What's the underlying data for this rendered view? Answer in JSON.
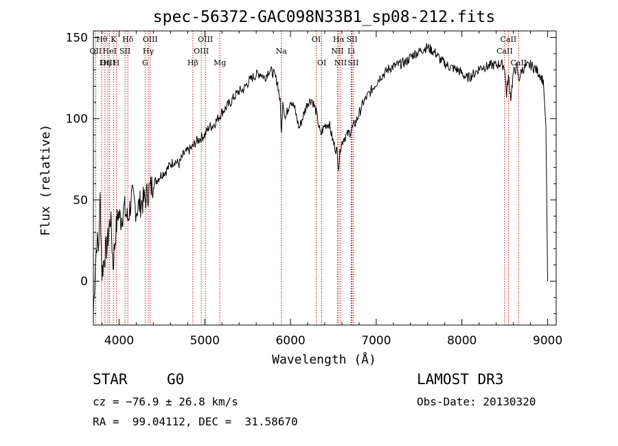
{
  "chart_data": {
    "type": "line",
    "title": "spec-56372-GAC098N33B1_sp08-212.fits",
    "xlabel": "Wavelength (Å)",
    "ylabel": "Flux (relative)",
    "xlim": [
      3700,
      9100
    ],
    "ylim": [
      -27,
      154
    ],
    "xticks": [
      4000,
      5000,
      6000,
      7000,
      8000,
      9000
    ],
    "yticks": [
      0,
      50,
      100,
      150
    ],
    "grid": false,
    "series": [
      {
        "name": "flux",
        "x": [
          3700,
          3720,
          3740,
          3760,
          3780,
          3800,
          3830,
          3860,
          3900,
          3930,
          3960,
          3990,
          4020,
          4060,
          4100,
          4150,
          4200,
          4250,
          4300,
          4350,
          4400,
          4450,
          4500,
          4550,
          4600,
          4650,
          4700,
          4750,
          4800,
          4850,
          4900,
          4950,
          5000,
          5050,
          5100,
          5150,
          5200,
          5250,
          5300,
          5350,
          5400,
          5450,
          5500,
          5550,
          5600,
          5650,
          5700,
          5750,
          5800,
          5850,
          5880,
          5895,
          5910,
          5940,
          5960,
          6000,
          6050,
          6100,
          6150,
          6200,
          6250,
          6300,
          6350,
          6400,
          6450,
          6500,
          6540,
          6563,
          6580,
          6620,
          6700,
          6780,
          6850,
          6900,
          6950,
          7000,
          7050,
          7100,
          7150,
          7200,
          7250,
          7300,
          7350,
          7400,
          7450,
          7500,
          7550,
          7600,
          7650,
          7700,
          7750,
          7800,
          7850,
          7900,
          7950,
          8000,
          8050,
          8100,
          8150,
          8200,
          8250,
          8300,
          8350,
          8400,
          8450,
          8498,
          8520,
          8542,
          8570,
          8600,
          8640,
          8662,
          8700,
          8750,
          8800,
          8850,
          8900,
          8950,
          8980,
          9000
        ],
        "values": [
          -20,
          8,
          25,
          20,
          52,
          5,
          15,
          22,
          40,
          10,
          30,
          42,
          38,
          45,
          38,
          52,
          44,
          48,
          50,
          56,
          60,
          63,
          66,
          68,
          72,
          74,
          72,
          78,
          80,
          82,
          86,
          88,
          90,
          95,
          96,
          100,
          104,
          107,
          110,
          114,
          117,
          118,
          122,
          125,
          127,
          128,
          125,
          130,
          128,
          122,
          110,
          90,
          112,
          100,
          104,
          112,
          106,
          94,
          102,
          110,
          112,
          104,
          90,
          96,
          97,
          85,
          80,
          70,
          82,
          88,
          92,
          100,
          110,
          114,
          118,
          122,
          126,
          128,
          131,
          132,
          133,
          134,
          135,
          138,
          140,
          141,
          143,
          144,
          142,
          140,
          136,
          134,
          132,
          131,
          130,
          128,
          125,
          126,
          128,
          131,
          132,
          132,
          133,
          133,
          134,
          132,
          115,
          126,
          113,
          128,
          132,
          124,
          130,
          132,
          133,
          131,
          128,
          123,
          95,
          0
        ]
      }
    ],
    "line_labels": [
      {
        "label": "Hθ",
        "x": 3798,
        "row": 1
      },
      {
        "label": "OII",
        "x": 3727,
        "row": 2
      },
      {
        "label": "OIII",
        "x": 3869,
        "row": 3
      },
      {
        "label": "K",
        "x": 3934,
        "row": 1
      },
      {
        "label": "HeI",
        "x": 3889,
        "row": 2
      },
      {
        "label": "Hη",
        "x": 3835,
        "row": 3
      },
      {
        "label": "Hδ",
        "x": 4102,
        "row": 1
      },
      {
        "label": "SII",
        "x": 4069,
        "row": 2
      },
      {
        "label": "H",
        "x": 3968,
        "row": 3
      },
      {
        "label": "OIII",
        "x": 4363,
        "row": 1
      },
      {
        "label": "Hγ",
        "x": 4341,
        "row": 2
      },
      {
        "label": "G",
        "x": 4304,
        "row": 3
      },
      {
        "label": "OIII",
        "x": 5007,
        "row": 1
      },
      {
        "label": "OIII",
        "x": 4959,
        "row": 2
      },
      {
        "label": "Hβ",
        "x": 4861,
        "row": 3
      },
      {
        "label": "Mg",
        "x": 5175,
        "row": 3
      },
      {
        "label": "Na",
        "x": 5893,
        "row": 2
      },
      {
        "label": "OI",
        "x": 6300,
        "row": 1
      },
      {
        "label": "OI",
        "x": 6364,
        "row": 3
      },
      {
        "label": "Hα",
        "x": 6563,
        "row": 1
      },
      {
        "label": "NII",
        "x": 6548,
        "row": 2
      },
      {
        "label": "NII",
        "x": 6584,
        "row": 3
      },
      {
        "label": "SII",
        "x": 6717,
        "row": 1
      },
      {
        "label": "Li",
        "x": 6708,
        "row": 2
      },
      {
        "label": "SII",
        "x": 6731,
        "row": 3
      },
      {
        "label": "CaII",
        "x": 8542,
        "row": 1
      },
      {
        "label": "CaII",
        "x": 8498,
        "row": 2
      },
      {
        "label": "CaII",
        "x": 8662,
        "row": 3
      }
    ],
    "marker_lines_x": [
      3727,
      3798,
      3835,
      3869,
      3889,
      3934,
      3968,
      4069,
      4102,
      4304,
      4341,
      4363,
      4861,
      4959,
      5007,
      5175,
      5893,
      6300,
      6364,
      6548,
      6563,
      6584,
      6708,
      6717,
      6731,
      8498,
      8542,
      8662
    ]
  },
  "info": {
    "class": "STAR",
    "subclass": "G0",
    "survey": "LAMOST DR3",
    "cz": "cz = −76.9 ± 26.8 km/s",
    "obs_date": "Obs-Date: 20130320",
    "coords": "RA =  99.04112, DEC =  31.58670"
  },
  "colors": {
    "marker": "#cc0000",
    "line": "#000000"
  }
}
